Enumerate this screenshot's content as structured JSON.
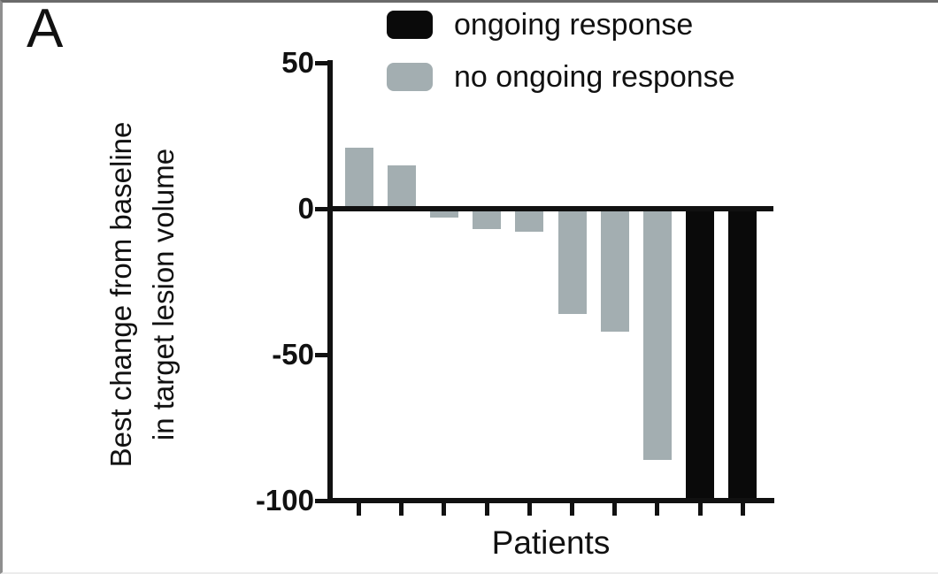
{
  "panel_label": "A",
  "colors": {
    "ongoing": "#0a0a0a",
    "no_ongoing": "#a3aeb1",
    "axis": "#111111"
  },
  "legend": {
    "items": [
      {
        "label": "ongoing response",
        "color_key": "ongoing"
      },
      {
        "label": "no ongoing response",
        "color_key": "no_ongoing"
      }
    ]
  },
  "chart_data": {
    "type": "bar",
    "title": "",
    "xlabel": "Patients",
    "ylabel": "Best change from baseline in target lesion volume",
    "ylabel_lines": [
      "Best change from baseline",
      "in target lesion volume"
    ],
    "ylim": [
      -100,
      50
    ],
    "yticks": [
      50,
      0,
      -50,
      -100
    ],
    "ytick_labels": [
      "50",
      "0",
      "-50",
      "-100"
    ],
    "x": [
      1,
      2,
      3,
      4,
      5,
      6,
      7,
      8,
      9,
      10
    ],
    "values": [
      21,
      15,
      -3,
      -7,
      -8,
      -36,
      -42,
      -86,
      -100,
      -100
    ],
    "groups": [
      "no_ongoing",
      "no_ongoing",
      "no_ongoing",
      "no_ongoing",
      "no_ongoing",
      "no_ongoing",
      "no_ongoing",
      "no_ongoing",
      "ongoing",
      "ongoing"
    ],
    "grid": false,
    "legend_position": "top-right"
  }
}
